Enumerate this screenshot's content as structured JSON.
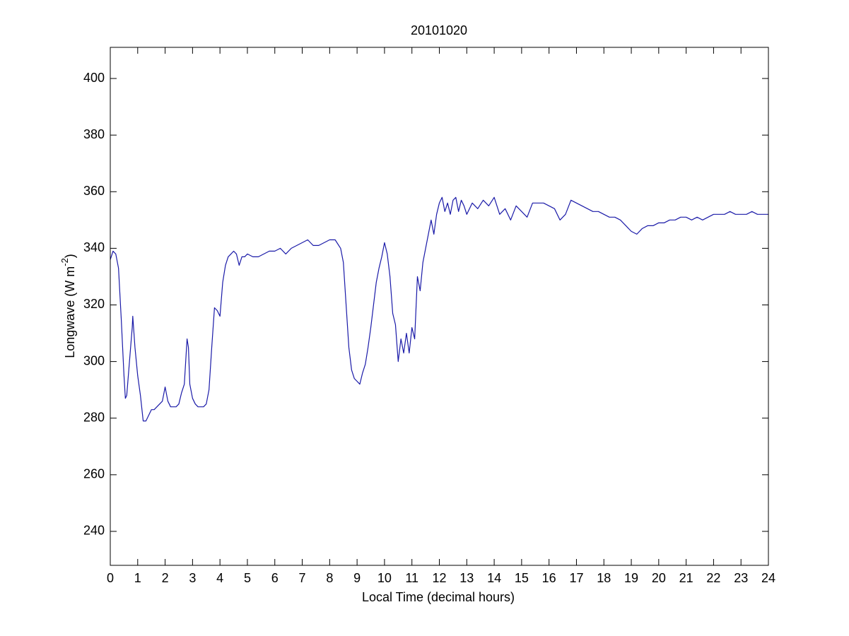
{
  "chart_data": {
    "type": "line",
    "title": "20101020",
    "xlabel": "Local Time (decimal hours)",
    "ylabel": {
      "text": "Longwave (W m",
      "superscript": "-2",
      "suffix": ")"
    },
    "x": [
      0,
      0.1,
      0.2,
      0.3,
      0.4,
      0.5,
      0.55,
      0.6,
      0.7,
      0.8,
      0.82,
      0.9,
      1.0,
      1.1,
      1.2,
      1.3,
      1.4,
      1.5,
      1.6,
      1.7,
      1.8,
      1.9,
      2.0,
      2.1,
      2.2,
      2.3,
      2.4,
      2.5,
      2.6,
      2.7,
      2.8,
      2.85,
      2.9,
      3.0,
      3.1,
      3.2,
      3.3,
      3.4,
      3.5,
      3.6,
      3.7,
      3.8,
      3.9,
      4.0,
      4.1,
      4.2,
      4.3,
      4.4,
      4.5,
      4.6,
      4.7,
      4.8,
      4.9,
      5.0,
      5.2,
      5.4,
      5.6,
      5.8,
      6.0,
      6.2,
      6.4,
      6.6,
      6.8,
      7.0,
      7.2,
      7.4,
      7.6,
      7.8,
      8.0,
      8.2,
      8.4,
      8.5,
      8.6,
      8.7,
      8.8,
      8.9,
      9.0,
      9.1,
      9.2,
      9.3,
      9.4,
      9.5,
      9.6,
      9.7,
      9.8,
      9.9,
      10.0,
      10.1,
      10.2,
      10.3,
      10.4,
      10.5,
      10.6,
      10.7,
      10.8,
      10.9,
      11.0,
      11.1,
      11.2,
      11.3,
      11.4,
      11.5,
      11.6,
      11.7,
      11.8,
      11.9,
      12.0,
      12.1,
      12.2,
      12.3,
      12.4,
      12.5,
      12.6,
      12.7,
      12.8,
      12.9,
      13.0,
      13.2,
      13.4,
      13.6,
      13.8,
      14.0,
      14.2,
      14.4,
      14.6,
      14.8,
      15.0,
      15.2,
      15.4,
      15.6,
      15.8,
      16.0,
      16.2,
      16.4,
      16.6,
      16.8,
      17.0,
      17.2,
      17.4,
      17.6,
      17.8,
      18.0,
      18.2,
      18.4,
      18.6,
      18.8,
      19.0,
      19.2,
      19.4,
      19.6,
      19.8,
      20.0,
      20.2,
      20.4,
      20.6,
      20.8,
      21.0,
      21.2,
      21.4,
      21.6,
      21.8,
      22.0,
      22.2,
      22.4,
      22.6,
      22.8,
      23.0,
      23.2,
      23.4,
      23.6,
      23.8,
      24.0
    ],
    "series": [
      {
        "color": "#1a1aa8",
        "values": [
          336,
          339,
          338,
          333,
          315,
          295,
          287,
          288,
          300,
          312,
          316,
          305,
          295,
          288,
          279,
          279,
          281,
          283,
          283,
          284,
          285,
          286,
          291,
          286,
          284,
          284,
          284,
          285,
          289,
          292,
          308,
          305,
          292,
          287,
          285,
          284,
          284,
          284,
          285,
          290,
          305,
          319,
          318,
          316,
          328,
          334,
          337,
          338,
          339,
          338,
          334,
          337,
          337,
          338,
          337,
          337,
          338,
          339,
          339,
          340,
          338,
          340,
          341,
          342,
          343,
          341,
          341,
          342,
          343,
          343,
          340,
          335,
          320,
          305,
          297,
          294,
          293,
          292,
          296,
          299,
          305,
          312,
          320,
          328,
          333,
          337,
          342,
          338,
          330,
          317,
          313,
          300,
          308,
          303,
          310,
          303,
          312,
          308,
          330,
          325,
          335,
          340,
          345,
          350,
          345,
          352,
          356,
          358,
          353,
          356,
          352,
          357,
          358,
          353,
          357,
          355,
          352,
          356,
          354,
          357,
          355,
          358,
          352,
          354,
          350,
          355,
          353,
          351,
          356,
          356,
          356,
          355,
          354,
          350,
          352,
          357,
          356,
          355,
          354,
          353,
          353,
          352,
          351,
          351,
          350,
          348,
          346,
          345,
          347,
          348,
          348,
          349,
          349,
          350,
          350,
          351,
          351,
          350,
          351,
          350,
          351,
          352,
          352,
          352,
          353,
          352,
          352,
          352,
          353,
          352,
          352,
          352
        ]
      }
    ],
    "xlim": [
      0,
      24
    ],
    "ylim": [
      228,
      411
    ],
    "xticks": [
      0,
      1,
      2,
      3,
      4,
      5,
      6,
      7,
      8,
      9,
      10,
      11,
      12,
      13,
      14,
      15,
      16,
      17,
      18,
      19,
      20,
      21,
      22,
      23,
      24
    ],
    "yticks": [
      240,
      260,
      280,
      300,
      320,
      340,
      360,
      380,
      400
    ]
  }
}
